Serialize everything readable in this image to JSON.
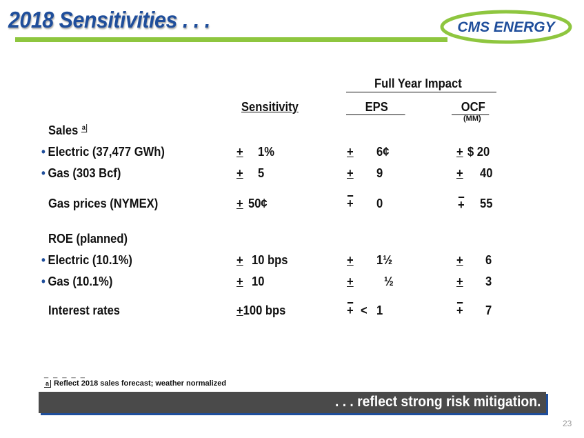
{
  "title": "2018 Sensitivities . . .",
  "logo_text": "CMS ENERGY",
  "colors": {
    "title": "#1f4e9b",
    "accent_bar": "#8ec63f",
    "banner_bg": "#4a4a4a",
    "banner_shadow": "#1f4e9b"
  },
  "header": {
    "full_year_impact": "Full Year Impact",
    "sensitivity": "Sensitivity",
    "eps": "EPS",
    "ocf": "OCF",
    "ocf_unit": "(MM)"
  },
  "rows": {
    "sales": {
      "label": "Sales",
      "marker": "a"
    },
    "electric_sales": {
      "bullet": "•",
      "label": "Electric (37,477 GWh)",
      "sens_sign": "+",
      "sens_val": "1%",
      "eps_sign": "+",
      "eps_val": "6¢",
      "ocf_sign": "+",
      "ocf_val": "$ 20"
    },
    "gas_sales": {
      "bullet": "•",
      "label": "Gas (303 Bcf)",
      "sens_sign": "+",
      "sens_val": "5",
      "eps_sign": "+",
      "eps_val": "9",
      "ocf_sign": "+",
      "ocf_val": "40"
    },
    "gas_prices": {
      "label": "Gas prices (NYMEX)",
      "sens_sign": "+",
      "sens_val": "50¢",
      "eps_sign": "+",
      "eps_val": "0",
      "ocf_sign": "+",
      "ocf_val": "55"
    },
    "roe": {
      "label": "ROE (planned)"
    },
    "electric_roe": {
      "bullet": "•",
      "label": "Electric (10.1%)",
      "sens_sign": "+",
      "sens_val": "10 bps",
      "eps_sign": "+",
      "eps_val": "1½",
      "ocf_sign": "+",
      "ocf_val": "6"
    },
    "gas_roe": {
      "bullet": "•",
      "label": "Gas (10.1%)",
      "sens_sign": "+",
      "sens_val": "10",
      "eps_sign": "+",
      "eps_val": "½",
      "ocf_sign": "+",
      "ocf_val": "3"
    },
    "interest": {
      "label": "Interest rates",
      "sens_sign": "+",
      "sens_val": "100 bps",
      "eps_sign": "+",
      "eps_lt": "<",
      "eps_val": "1",
      "ocf_sign": "+",
      "ocf_val": "7"
    }
  },
  "footnote": {
    "dashes": "_ _ _ _ _",
    "marker": "a",
    "text": "Reflect 2018 sales forecast; weather normalized"
  },
  "banner": ". . . reflect strong risk mitigation.",
  "page_number": "23"
}
